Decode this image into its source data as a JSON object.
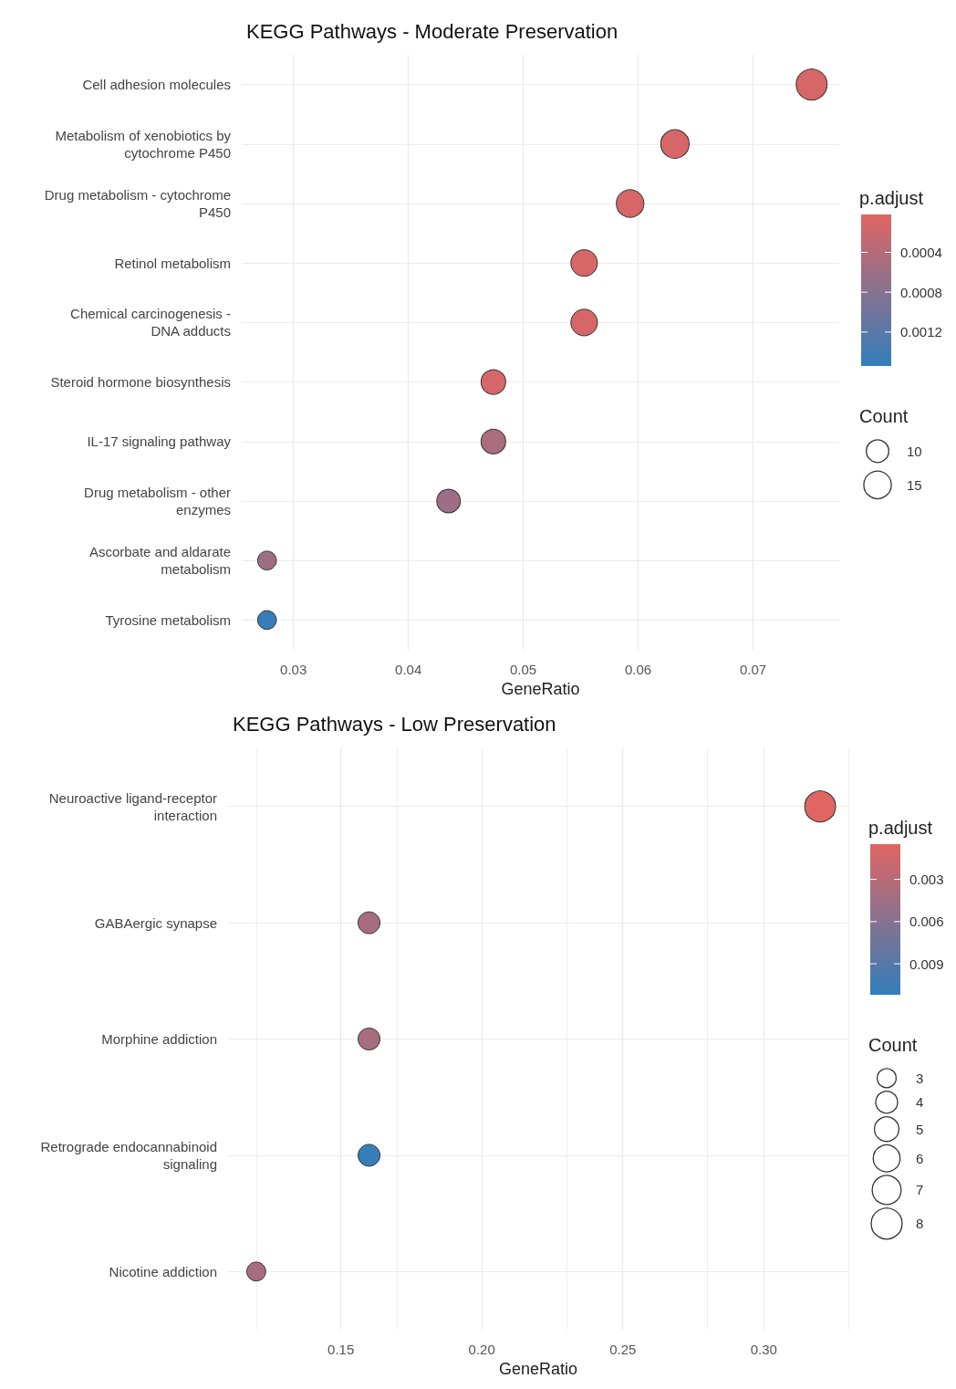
{
  "chart_data": [
    {
      "type": "bubble",
      "title": "KEGG Pathways - Moderate Preservation",
      "xlabel": "GeneRatio",
      "orientation": "horizontal",
      "categories": [
        "Cell adhesion molecules",
        "Metabolism of xenobiotics by\ncytochrome P450",
        "Drug metabolism - cytochrome\nP450",
        "Retinol metabolism",
        "Chemical carcinogenesis -\nDNA adducts",
        "Steroid hormone biosynthesis",
        "IL-17 signaling pathway",
        "Drug metabolism - other\nenzymes",
        "Ascorbate and aldarate\nmetabolism",
        "Tyrosine metabolism"
      ],
      "values": [
        0.0751,
        0.0632,
        0.0593,
        0.0553,
        0.0553,
        0.0474,
        0.0474,
        0.0435,
        0.0277,
        0.0277
      ],
      "sizes": [
        19,
        16,
        15,
        14,
        14,
        12,
        12,
        11,
        7,
        7
      ],
      "size_legend": [
        10,
        15
      ],
      "legend_title": "Count",
      "cvalues": [
        0.0001,
        0.0001,
        0.0001,
        0.0001,
        0.0001,
        0.0001,
        0.0005,
        0.0006,
        0.0006,
        0.0015
      ],
      "clabel": "p.adjust",
      "clim": [
        2e-05,
        0.00154
      ],
      "cticks": [
        0.0004,
        0.0008,
        0.0012
      ],
      "xlim": [
        0.0255,
        0.0775
      ],
      "xticks": [
        0.03,
        0.04,
        0.05,
        0.06,
        0.07
      ],
      "grid": true
    },
    {
      "type": "bubble",
      "title": "KEGG Pathways - Low Preservation",
      "xlabel": "GeneRatio",
      "orientation": "horizontal",
      "categories": [
        "Neuroactive ligand-receptor\ninteraction",
        "GABAergic synapse",
        "Morphine addiction",
        "Retrograde endocannabinoid\nsignaling",
        "Nicotine addiction"
      ],
      "values": [
        0.32,
        0.16,
        0.16,
        0.16,
        0.12
      ],
      "sizes": [
        8,
        4,
        4,
        4,
        3
      ],
      "size_legend": [
        3,
        4,
        5,
        6,
        7,
        8
      ],
      "legend_title": "Count",
      "cvalues": [
        0.0005,
        0.004,
        0.004,
        0.011,
        0.004
      ],
      "clabel": "p.adjust",
      "clim": [
        0.0005,
        0.0112
      ],
      "cticks": [
        0.003,
        0.006,
        0.009
      ],
      "xlim": [
        0.11,
        0.33
      ],
      "xticks": [
        {
          "value": 0.15,
          "label": "0.15"
        },
        {
          "value": 0.2,
          "label": "0.20"
        },
        {
          "value": 0.25,
          "label": "0.25"
        },
        {
          "value": 0.3,
          "label": "0.30"
        }
      ],
      "grid": true
    }
  ]
}
